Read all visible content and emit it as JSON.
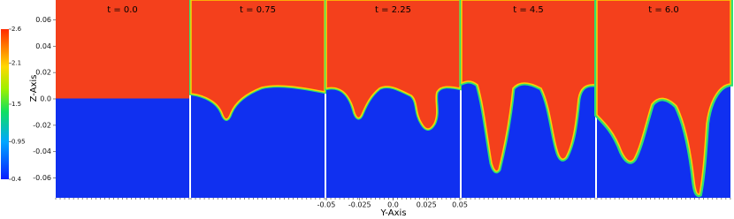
{
  "colorbar": {
    "ticks": [
      2.6,
      2.1,
      1.5,
      0.95,
      0.4
    ],
    "lim": [
      0.4,
      2.6
    ]
  },
  "z_axis": {
    "label": "Z-Axis",
    "ticks": [
      0.06,
      0.04,
      0.02,
      {
        "value": 0,
        "label": "0.0"
      },
      -0.02,
      -0.04,
      -0.06
    ],
    "lim": [
      -0.075,
      0.075
    ]
  },
  "y_axis": {
    "label": "Y-Axis",
    "ticks": [
      -0.05,
      -0.025,
      {
        "value": 0,
        "label": "0.0"
      },
      0.025,
      0.05
    ],
    "lim": [
      -0.05,
      0.05
    ]
  },
  "panels": [
    {
      "title": "t = 0.0"
    },
    {
      "title": "t = 0.75"
    },
    {
      "title": "t = 2.25"
    },
    {
      "title": "t = 4.5"
    },
    {
      "title": "t = 6.0"
    }
  ]
}
